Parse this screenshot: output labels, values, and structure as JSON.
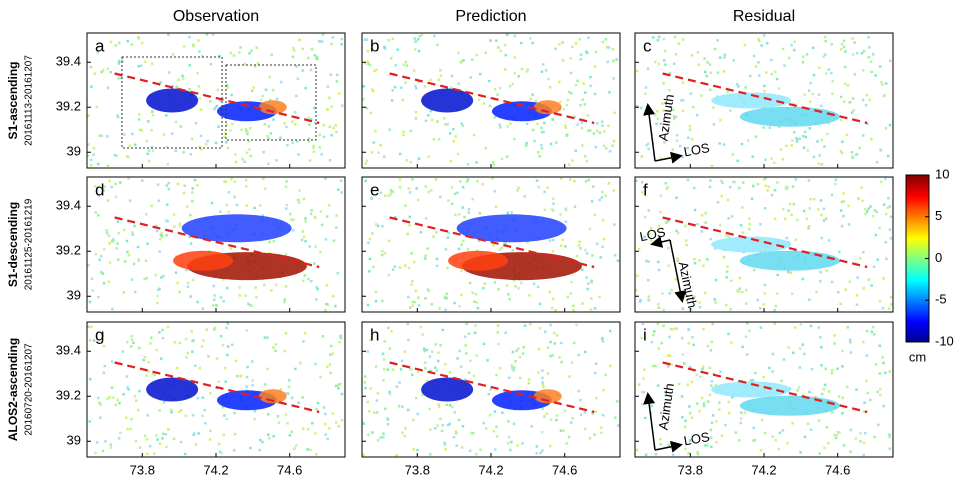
{
  "chart_data": {
    "type": "scatter",
    "columns": [
      "Observation",
      "Prediction",
      "Residual"
    ],
    "rows": [
      {
        "name": "S1-ascending",
        "dates": "20161113-20161207"
      },
      {
        "name": "S1-descending",
        "dates": "20161125-20161219"
      },
      {
        "name": "ALOS2-ascending",
        "dates": "20160720-20161207"
      }
    ],
    "xlim": [
      73.5,
      74.9
    ],
    "ylim": [
      38.93,
      39.53
    ],
    "xticks": [
      73.8,
      74.2,
      74.6
    ],
    "yticks": [
      39,
      39.2,
      39.4
    ],
    "fault_x": [
      73.65,
      74.76
    ],
    "fault_y": [
      39.35,
      39.13
    ],
    "fault_color": "#e02020",
    "panels": [
      {
        "label": "a"
      },
      {
        "label": "b"
      },
      {
        "label": "c",
        "azimuth": "Azimuth",
        "los": "LOS"
      },
      {
        "label": "d"
      },
      {
        "label": "e"
      },
      {
        "label": "f",
        "azimuth": "Azimuth",
        "los": "LOS"
      },
      {
        "label": "g"
      },
      {
        "label": "h"
      },
      {
        "label": "i",
        "azimuth": "Azimuth",
        "los": "LOS"
      }
    ],
    "colorbar": {
      "lim": [
        -10,
        10
      ],
      "ticks": [
        {
          "value": -10,
          "label": "-10"
        },
        {
          "value": -5,
          "label": "-5"
        },
        0,
        5,
        10
      ],
      "unit": "cm"
    }
  }
}
